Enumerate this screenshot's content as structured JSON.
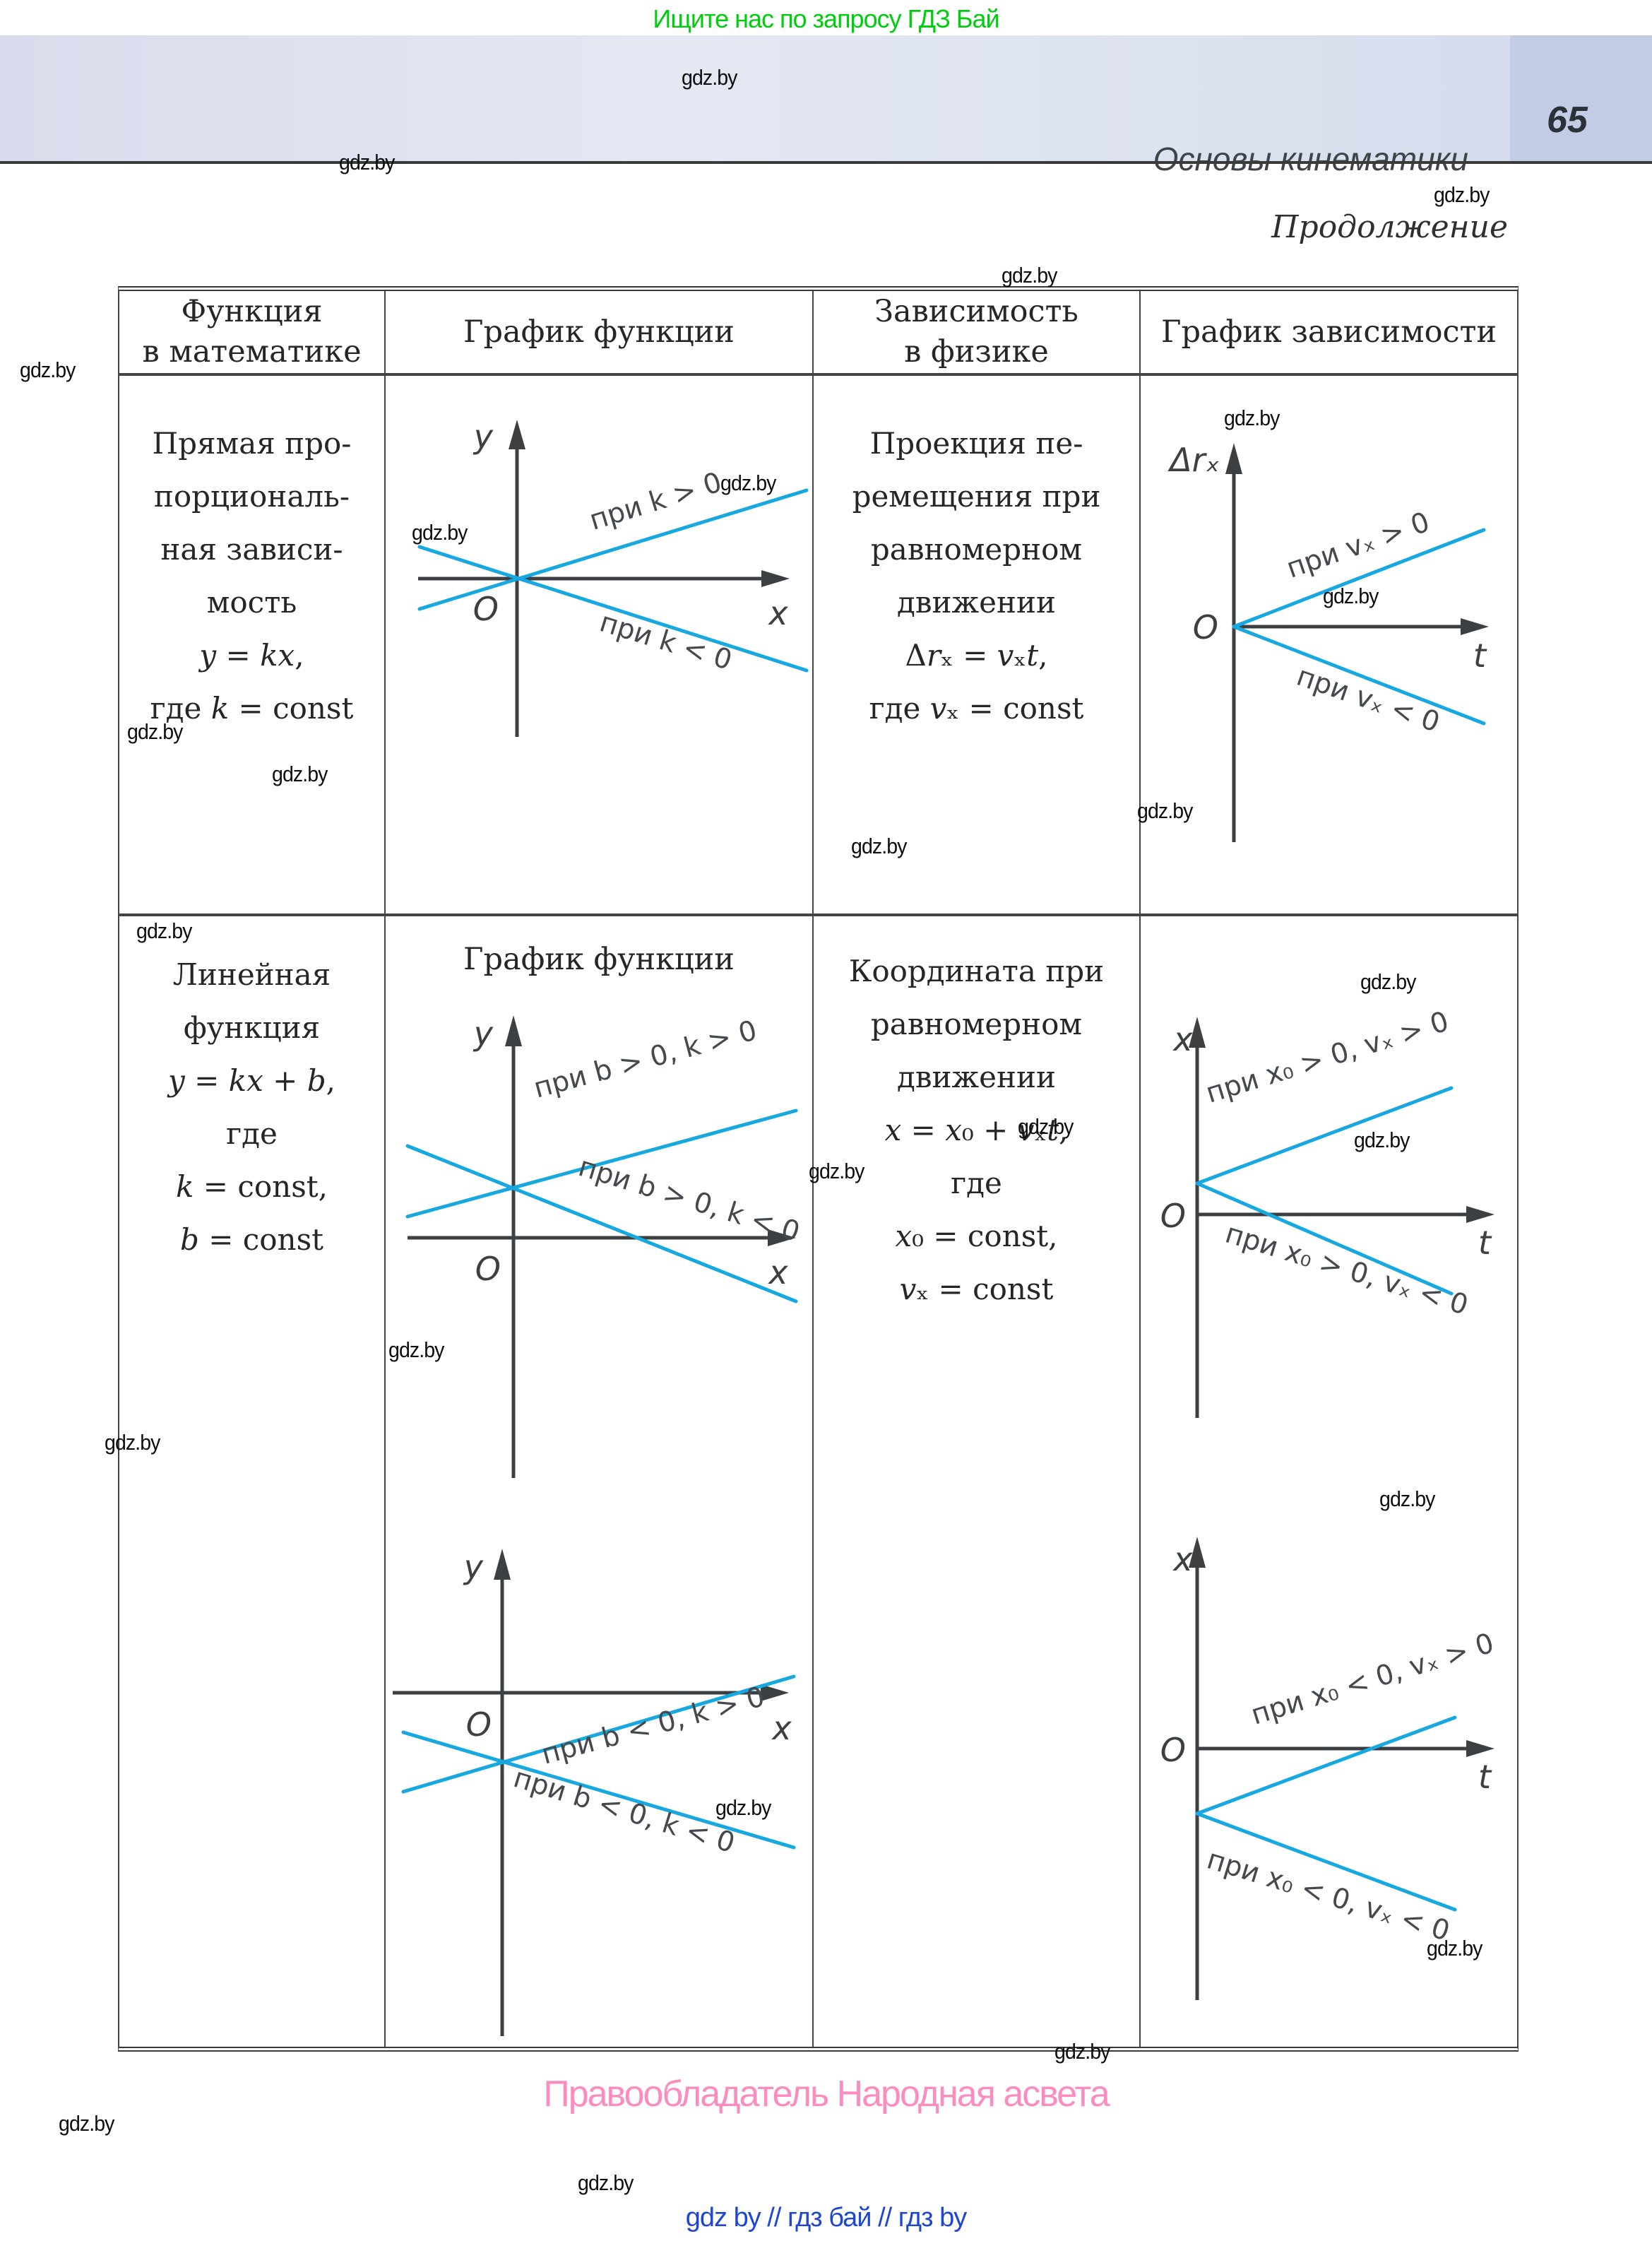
{
  "page": {
    "promo_text": "Ищите нас по запросу ГДЗ Бай",
    "watermark": "gdz.by",
    "header": {
      "chapter_title": "Основы  кинематики",
      "page_number": "65"
    },
    "continuation_label": "Продолжение"
  },
  "table": {
    "headers": [
      {
        "lines": [
          "Функция",
          "в математике"
        ]
      },
      {
        "lines": [
          "График функции"
        ]
      },
      {
        "lines": [
          "Зависимость",
          "в физике"
        ]
      },
      {
        "lines": [
          "График зависимости"
        ]
      }
    ],
    "row1": {
      "math_text": {
        "lines": [
          "Прямая про-",
          "порциональ-",
          "ная зависи-",
          "мость",
          "*y* = *kx*,",
          "где *k* = const"
        ]
      },
      "physics_text": {
        "lines": [
          "Проекция пе-",
          "ремещения при",
          "равномерном",
          "движении",
          "Δ*r*ₓ = *v*ₓ*t*,",
          "где *v*ₓ = const"
        ]
      }
    },
    "row2": {
      "math_text": {
        "lines": [
          "Линейная",
          "функция",
          "*y* = *kx* + *b*,",
          "где",
          "*k* = const,",
          "*b* = const"
        ]
      },
      "graph_title": "График функции",
      "physics_text": {
        "lines": [
          "Координата при",
          "равномерном",
          "движении",
          "*x* = *x*₀ + *v*ₓ*t*,",
          "где",
          "*x*₀ = const,",
          "*v*ₓ = const"
        ]
      }
    }
  },
  "graphs": {
    "kx": {
      "y_label": "y",
      "x_label": "x",
      "origin": "O",
      "pos_label": "при k > 0",
      "neg_label": "при k < 0"
    },
    "drx": {
      "y_label": "Δrₓ",
      "x_label": "t",
      "origin": "O",
      "pos_label": "при vₓ > 0",
      "neg_label": "при vₓ < 0"
    },
    "b_pos": {
      "y_label": "y",
      "x_label": "x",
      "origin": "O",
      "pos_label": "при b > 0, k > 0",
      "neg_label": "при b > 0, k < 0"
    },
    "b_neg": {
      "y_label": "y",
      "x_label": "x",
      "origin": "O",
      "pos_label": "при b < 0, k > 0",
      "neg_label": "при b < 0, k < 0"
    },
    "x0_pos": {
      "y_label": "x",
      "x_label": "t",
      "origin": "O",
      "pos_label": "при x₀ > 0, vₓ > 0",
      "neg_label": "при x₀ > 0, vₓ < 0"
    },
    "x0_neg": {
      "y_label": "x",
      "x_label": "t",
      "origin": "O",
      "pos_label": "при x₀ < 0, vₓ > 0",
      "neg_label": "при x₀ < 0, vₓ < 0"
    }
  },
  "colors": {
    "curve_cyan": "#18a8e0",
    "axis_gray": "#3d4043",
    "band_lavender": "#dde2f0",
    "page_box": "#c3cce5",
    "promo_green": "#00cd0e",
    "copyright_pink": "#fa8cc0",
    "links_blue": "#1f46d2"
  },
  "footer": {
    "copyright": "Правообладатель Народная асвета",
    "links_line": "gdz by  //  гдз бай  //  гдз by"
  }
}
